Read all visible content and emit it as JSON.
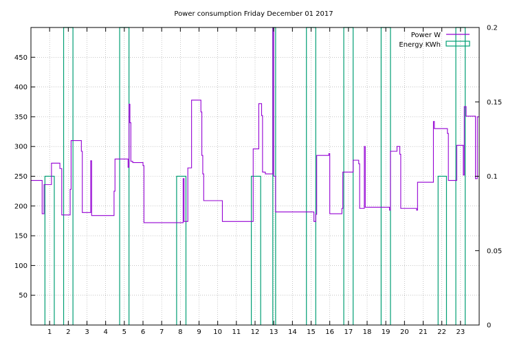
{
  "chart_data": {
    "type": "line",
    "title": "Power consumption Friday December 01 2017",
    "xlabel": "",
    "ylabel": "",
    "y2label": "",
    "xlim": [
      0,
      24
    ],
    "ylim": [
      0,
      500
    ],
    "y2lim": [
      0,
      0.2
    ],
    "x_ticks": [
      1,
      2,
      3,
      4,
      5,
      6,
      7,
      8,
      9,
      10,
      11,
      12,
      13,
      14,
      15,
      16,
      17,
      18,
      19,
      20,
      21,
      22,
      23
    ],
    "y_ticks": [
      50,
      100,
      150,
      200,
      250,
      300,
      350,
      400,
      450
    ],
    "y2_ticks": [
      0,
      0.05,
      0.1,
      0.15,
      0.2
    ],
    "y2_tick_labels": [
      "0",
      "0.05",
      "0.1",
      "0.15",
      "0.2"
    ],
    "grid": true,
    "legend_position": "top-right",
    "series": [
      {
        "name": "Power W",
        "axis": "y",
        "color": "#9400d3",
        "style": "step",
        "points": [
          [
            0.0,
            243
          ],
          [
            0.6,
            243
          ],
          [
            0.6,
            187
          ],
          [
            0.7,
            187
          ],
          [
            0.7,
            236
          ],
          [
            1.1,
            236
          ],
          [
            1.1,
            272
          ],
          [
            1.55,
            272
          ],
          [
            1.55,
            263
          ],
          [
            1.65,
            263
          ],
          [
            1.65,
            185
          ],
          [
            2.1,
            185
          ],
          [
            2.1,
            228
          ],
          [
            2.15,
            228
          ],
          [
            2.15,
            310
          ],
          [
            2.7,
            310
          ],
          [
            2.7,
            292
          ],
          [
            2.75,
            292
          ],
          [
            2.75,
            189
          ],
          [
            3.2,
            189
          ],
          [
            3.2,
            276
          ],
          [
            3.25,
            276
          ],
          [
            3.25,
            184
          ],
          [
            4.45,
            184
          ],
          [
            4.45,
            225
          ],
          [
            4.5,
            225
          ],
          [
            4.5,
            279
          ],
          [
            5.2,
            279
          ],
          [
            5.2,
            265
          ],
          [
            5.25,
            265
          ],
          [
            5.25,
            371
          ],
          [
            5.3,
            371
          ],
          [
            5.3,
            340
          ],
          [
            5.35,
            340
          ],
          [
            5.35,
            275
          ],
          [
            5.45,
            275
          ],
          [
            5.45,
            273
          ],
          [
            6.0,
            273
          ],
          [
            6.0,
            268
          ],
          [
            6.05,
            268
          ],
          [
            6.05,
            172
          ],
          [
            8.15,
            172
          ],
          [
            8.15,
            246
          ],
          [
            8.2,
            246
          ],
          [
            8.2,
            174
          ],
          [
            8.4,
            174
          ],
          [
            8.4,
            264
          ],
          [
            8.6,
            264
          ],
          [
            8.6,
            378
          ],
          [
            9.1,
            378
          ],
          [
            9.1,
            358
          ],
          [
            9.15,
            358
          ],
          [
            9.15,
            285
          ],
          [
            9.2,
            285
          ],
          [
            9.2,
            254
          ],
          [
            9.25,
            254
          ],
          [
            9.25,
            209
          ],
          [
            10.25,
            209
          ],
          [
            10.25,
            174
          ],
          [
            11.9,
            174
          ],
          [
            11.9,
            296
          ],
          [
            12.2,
            296
          ],
          [
            12.2,
            372
          ],
          [
            12.35,
            372
          ],
          [
            12.35,
            352
          ],
          [
            12.4,
            352
          ],
          [
            12.4,
            257
          ],
          [
            12.55,
            257
          ],
          [
            12.55,
            254
          ],
          [
            12.95,
            254
          ],
          [
            12.95,
            500
          ],
          [
            13.0,
            500
          ],
          [
            13.0,
            250
          ],
          [
            13.1,
            250
          ],
          [
            13.1,
            190
          ],
          [
            15.15,
            190
          ],
          [
            15.15,
            174
          ],
          [
            15.25,
            174
          ],
          [
            15.25,
            186
          ],
          [
            15.3,
            186
          ],
          [
            15.3,
            285
          ],
          [
            15.95,
            285
          ],
          [
            15.95,
            288
          ],
          [
            16.0,
            288
          ],
          [
            16.0,
            187
          ],
          [
            16.65,
            187
          ],
          [
            16.65,
            196
          ],
          [
            16.7,
            196
          ],
          [
            16.7,
            257
          ],
          [
            17.25,
            257
          ],
          [
            17.25,
            277
          ],
          [
            17.55,
            277
          ],
          [
            17.55,
            271
          ],
          [
            17.6,
            271
          ],
          [
            17.6,
            196
          ],
          [
            17.85,
            196
          ],
          [
            17.85,
            300
          ],
          [
            17.9,
            300
          ],
          [
            17.9,
            198
          ],
          [
            19.2,
            198
          ],
          [
            19.2,
            193
          ],
          [
            19.25,
            193
          ],
          [
            19.25,
            292
          ],
          [
            19.6,
            292
          ],
          [
            19.6,
            300
          ],
          [
            19.75,
            300
          ],
          [
            19.75,
            287
          ],
          [
            19.8,
            287
          ],
          [
            19.8,
            196
          ],
          [
            20.65,
            196
          ],
          [
            20.65,
            193
          ],
          [
            20.7,
            193
          ],
          [
            20.7,
            240
          ],
          [
            21.55,
            240
          ],
          [
            21.55,
            342
          ],
          [
            21.6,
            342
          ],
          [
            21.6,
            330
          ],
          [
            22.3,
            330
          ],
          [
            22.3,
            322
          ],
          [
            22.35,
            322
          ],
          [
            22.35,
            243
          ],
          [
            22.8,
            243
          ],
          [
            22.8,
            302
          ],
          [
            23.15,
            302
          ],
          [
            23.15,
            252
          ],
          [
            23.2,
            252
          ],
          [
            23.2,
            367
          ],
          [
            23.3,
            367
          ],
          [
            23.3,
            351
          ],
          [
            23.8,
            351
          ],
          [
            23.8,
            246
          ],
          [
            23.9,
            246
          ],
          [
            23.9,
            350
          ],
          [
            24.0,
            350
          ]
        ]
      },
      {
        "name": "Energy KWh",
        "axis": "y2",
        "color": "#009e73",
        "style": "impulse-pairs",
        "segments": [
          {
            "x0": 0.75,
            "x1": 1.25,
            "value": 0.1
          },
          {
            "x0": 1.75,
            "x1": 2.25,
            "value": 0.2
          },
          {
            "x0": 4.75,
            "x1": 5.25,
            "value": 0.2
          },
          {
            "x0": 7.8,
            "x1": 8.3,
            "value": 0.1
          },
          {
            "x0": 11.8,
            "x1": 12.3,
            "value": 0.1
          },
          {
            "x0": 12.95,
            "x1": 13.1,
            "value": 0.2
          },
          {
            "x0": 14.75,
            "x1": 15.25,
            "value": 0.2
          },
          {
            "x0": 16.75,
            "x1": 17.25,
            "value": 0.2
          },
          {
            "x0": 18.75,
            "x1": 19.25,
            "value": 0.2
          },
          {
            "x0": 21.8,
            "x1": 22.25,
            "value": 0.1
          },
          {
            "x0": 22.75,
            "x1": 23.25,
            "value": 0.2
          }
        ]
      }
    ]
  }
}
